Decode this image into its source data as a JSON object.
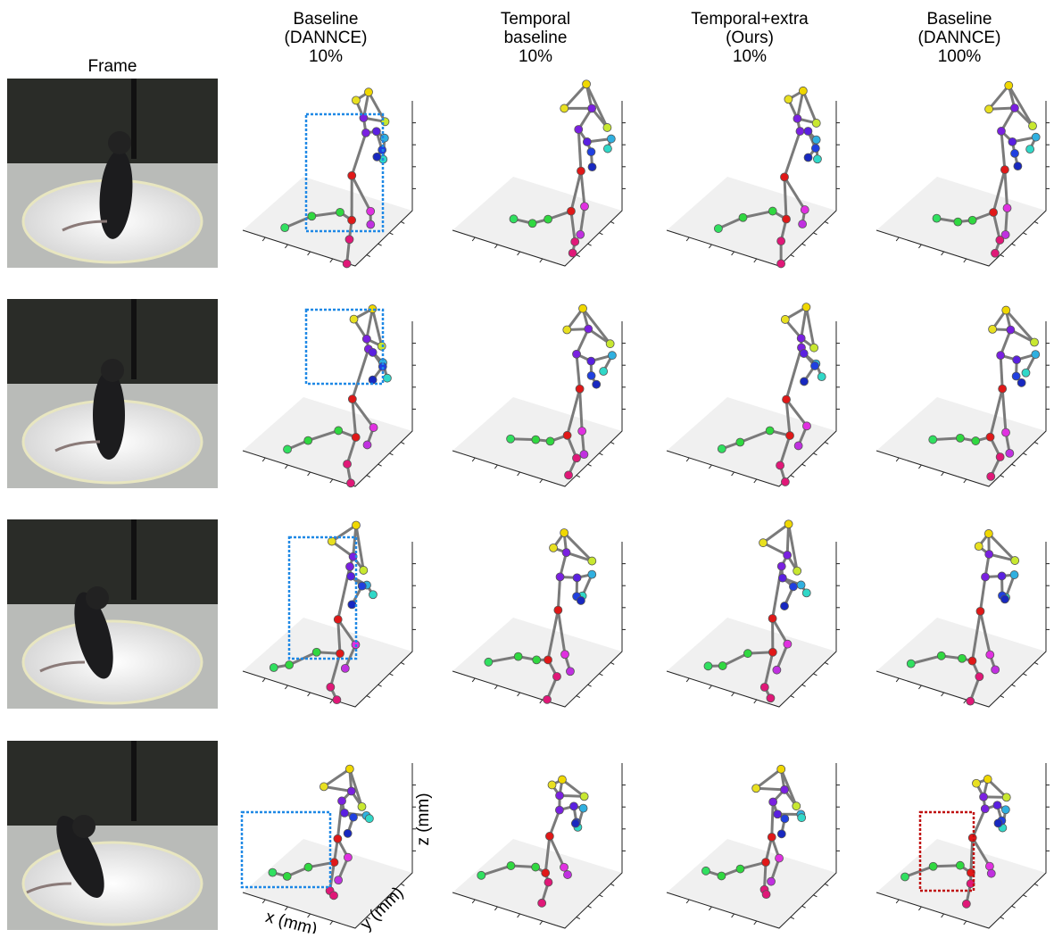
{
  "frame_title": "Frame",
  "headers": [
    [
      "Baseline",
      "(DANNCE)",
      "10%"
    ],
    [
      "Temporal",
      "baseline",
      "10%"
    ],
    [
      "Temporal+extra",
      "(Ours)",
      "10%"
    ],
    [
      "Baseline",
      "(DANNCE)",
      "100%"
    ]
  ],
  "axis_labels": {
    "x": "x (mm)",
    "y": "y (mm)",
    "z": "z (mm)"
  }
}
